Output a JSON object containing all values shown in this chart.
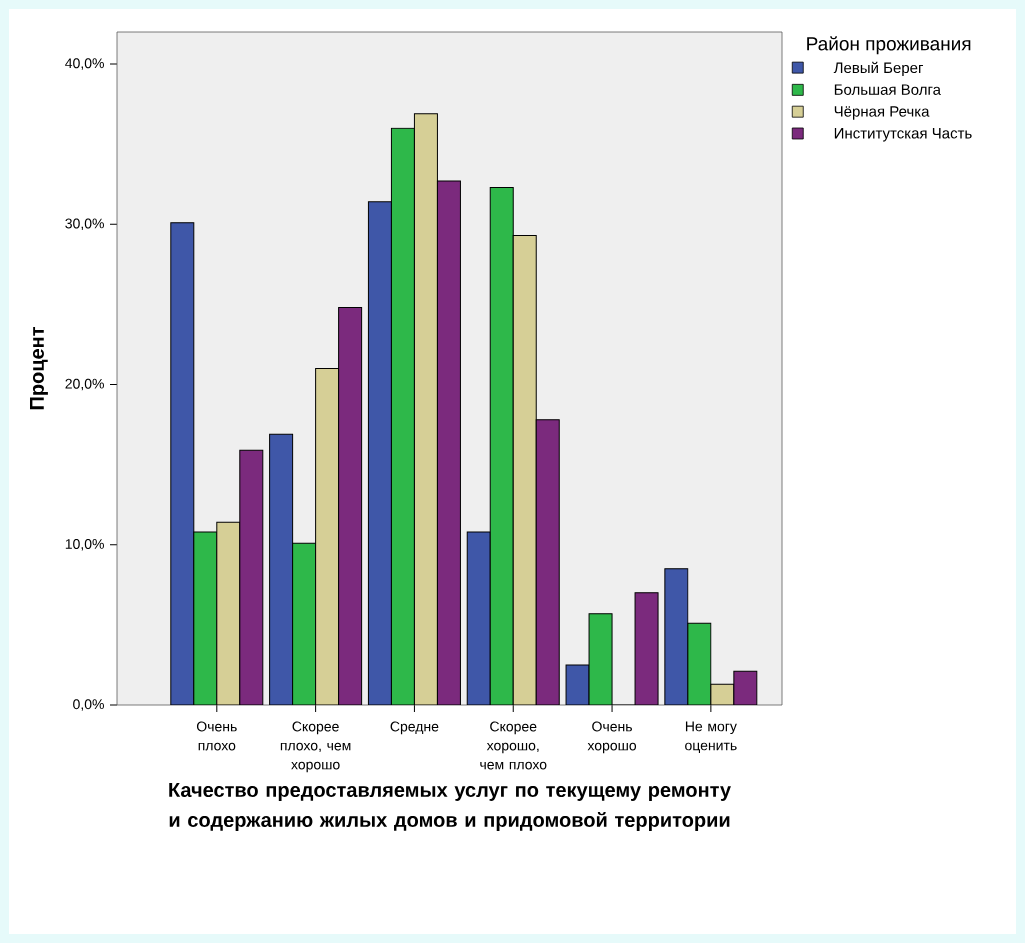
{
  "chart_data": {
    "type": "bar",
    "xlabel": "Качество предоставляемых услуг по текущему ремонту и содержанию жилых домов и придомовой территории",
    "ylabel": "Процент",
    "legend_title": "Район проживания",
    "categories": [
      "Очень плохо",
      "Скорее плохо, чем хорошо",
      "Средне",
      "Скорее хорошо, чем плохо",
      "Очень хорошо",
      "Не могу оценить"
    ],
    "series": [
      {
        "name": "Левый Берег",
        "color": "#3f57a8",
        "values": [
          30.1,
          16.9,
          31.4,
          10.8,
          2.5,
          8.5
        ]
      },
      {
        "name": "Большая Волга",
        "color": "#2eb84a",
        "values": [
          10.8,
          10.1,
          36.0,
          32.3,
          5.7,
          5.1
        ]
      },
      {
        "name": "Чёрная Речка",
        "color": "#d6cf96",
        "values": [
          11.4,
          21.0,
          36.9,
          29.3,
          0.0,
          1.3
        ]
      },
      {
        "name": "Институтская Часть",
        "color": "#7b2a7d",
        "values": [
          15.9,
          24.8,
          32.7,
          17.8,
          7.0,
          2.1
        ]
      }
    ],
    "ylim": [
      0,
      42
    ],
    "yticks": [
      {
        "value": 0,
        "label": "0,0%"
      },
      {
        "value": 10,
        "label": "10,0%"
      },
      {
        "value": 20,
        "label": "20,0%"
      },
      {
        "value": 30,
        "label": "30,0%"
      },
      {
        "value": 40,
        "label": "40,0%"
      }
    ],
    "grid": false,
    "legend": "top right"
  }
}
